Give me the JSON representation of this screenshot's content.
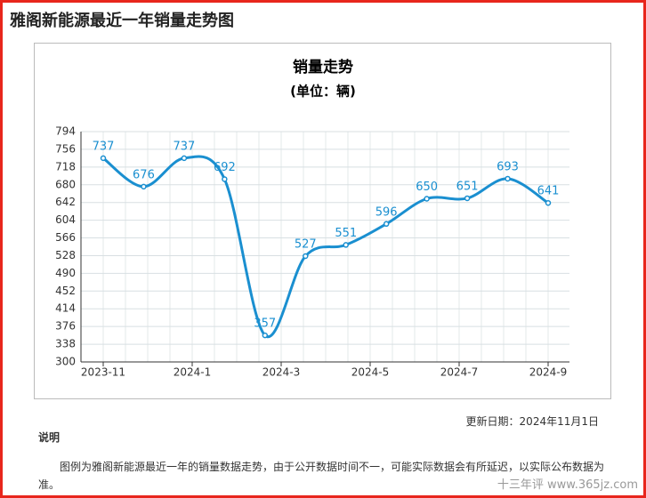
{
  "page_title": "雅阁新能源最近一年销量走势图",
  "chart_data": {
    "type": "line",
    "title": "销量走势",
    "subtitle": "(单位：辆)",
    "values": [
      737,
      676,
      737,
      692,
      357,
      527,
      551,
      596,
      650,
      651,
      693,
      641
    ],
    "x_tick_labels": [
      "2023-11",
      "2024-1",
      "2024-3",
      "2024-5",
      "2024-7",
      "2024-9"
    ],
    "color": "#1a8fd0",
    "ylim": [
      300,
      794
    ],
    "yticks": [
      300,
      338,
      376,
      414,
      452,
      490,
      528,
      566,
      604,
      642,
      680,
      718,
      756,
      794
    ],
    "grid": true
  },
  "update_date": "更新日期：2024年11月1日",
  "note_heading": "说明",
  "note_text": "图例为雅阁新能源最近一年的销量数据走势，由于公开数据时间不一，可能实际数据会有所延迟，以实际公布数据为准。",
  "watermark": "十三年评 www.365jz.com"
}
